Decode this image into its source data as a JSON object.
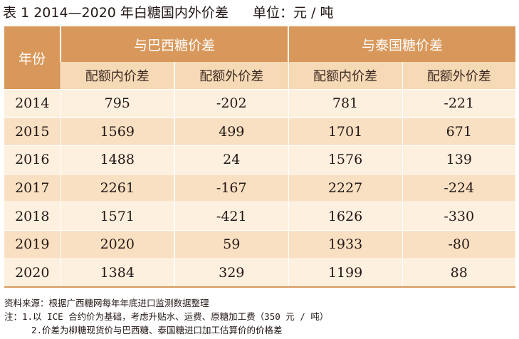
{
  "title": {
    "label": "表 1",
    "main": "2014—2020 年白糖国内外价差",
    "unit": "单位：元 / 吨"
  },
  "table": {
    "year_header": "年份",
    "group_headers": [
      "与巴西糖价差",
      "与泰国糖价差"
    ],
    "sub_headers": [
      "配额内价差",
      "配额外价差",
      "配额内价差",
      "配额外价差"
    ],
    "rows": [
      {
        "year": "2014",
        "values": [
          "795",
          "-202",
          "781",
          "-221"
        ]
      },
      {
        "year": "2015",
        "values": [
          "1569",
          "499",
          "1701",
          "671"
        ]
      },
      {
        "year": "2016",
        "values": [
          "1488",
          "24",
          "1576",
          "139"
        ]
      },
      {
        "year": "2017",
        "values": [
          "2261",
          "-167",
          "2227",
          "-224"
        ]
      },
      {
        "year": "2018",
        "values": [
          "1571",
          "-421",
          "1626",
          "-330"
        ]
      },
      {
        "year": "2019",
        "values": [
          "2020",
          "59",
          "1933",
          "-80"
        ]
      },
      {
        "year": "2020",
        "values": [
          "1384",
          "329",
          "1199",
          "88"
        ]
      }
    ]
  },
  "notes": {
    "source": "资料来源：根据广西糖网每年年底进口监测数据整理",
    "note1": "注：1.以 ICE 合约价为基础，考虑升贴水、运费、原糖加工费（350 元 / 吨）",
    "note2": "2.价差为柳糖现货价与巴西糖、泰国糖进口加工估算价的价格差"
  },
  "colors": {
    "header_dark": "#d9985b",
    "header_light": "#f6d9b5",
    "row_light": "#fdf0df",
    "row_dark": "#f9e0c2"
  }
}
